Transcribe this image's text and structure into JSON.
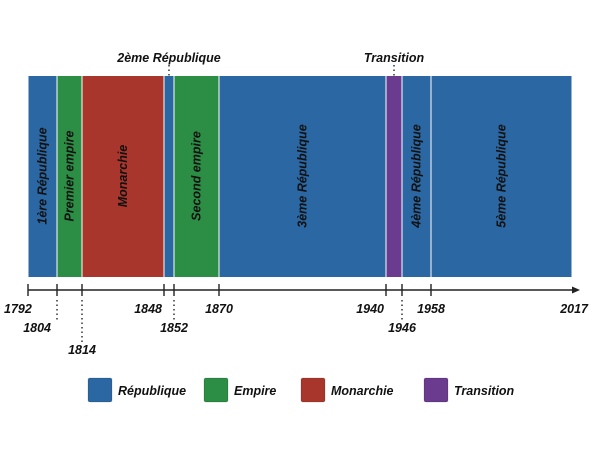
{
  "chart_data": {
    "type": "timeline",
    "title": "",
    "x_range": [
      1792,
      2017
    ],
    "periods": [
      {
        "label": "1ère République",
        "start": 1792,
        "end": 1804,
        "kind": "République"
      },
      {
        "label": "Premier empire",
        "start": 1804,
        "end": 1814,
        "kind": "Empire"
      },
      {
        "label": "Monarchie",
        "start": 1814,
        "end": 1848,
        "kind": "Monarchie"
      },
      {
        "label": "2ème République",
        "start": 1848,
        "end": 1852,
        "kind": "République",
        "label_above": true
      },
      {
        "label": "Second empire",
        "start": 1852,
        "end": 1870,
        "kind": "Empire"
      },
      {
        "label": "3ème République",
        "start": 1870,
        "end": 1940,
        "kind": "République"
      },
      {
        "label": "Transition",
        "start": 1940,
        "end": 1946,
        "kind": "Transition",
        "label_above": true
      },
      {
        "label": "4ème République",
        "start": 1946,
        "end": 1958,
        "kind": "République"
      },
      {
        "label": "5ème République",
        "start": 1958,
        "end": 2017,
        "kind": "République"
      }
    ],
    "ticks": [
      {
        "label": "1792",
        "value": 1792,
        "row": 0
      },
      {
        "label": "1804",
        "value": 1804,
        "row": 1
      },
      {
        "label": "1814",
        "value": 1814,
        "row": 2
      },
      {
        "label": "1848",
        "value": 1848,
        "row": 0
      },
      {
        "label": "1852",
        "value": 1852,
        "row": 1
      },
      {
        "label": "1870",
        "value": 1870,
        "row": 0
      },
      {
        "label": "1940",
        "value": 1940,
        "row": 0
      },
      {
        "label": "1946",
        "value": 1946,
        "row": 1
      },
      {
        "label": "1958",
        "value": 1958,
        "row": 0
      },
      {
        "label": "2017",
        "value": 2017,
        "row": 0
      }
    ],
    "legend": {
      "placement": "bottom",
      "entries": [
        {
          "label": "République",
          "color": "#2b67a3"
        },
        {
          "label": "Empire",
          "color": "#2c8d44"
        },
        {
          "label": "Monarchie",
          "color": "#a8362c"
        },
        {
          "label": "Transition",
          "color": "#6a3b8e"
        }
      ]
    }
  }
}
